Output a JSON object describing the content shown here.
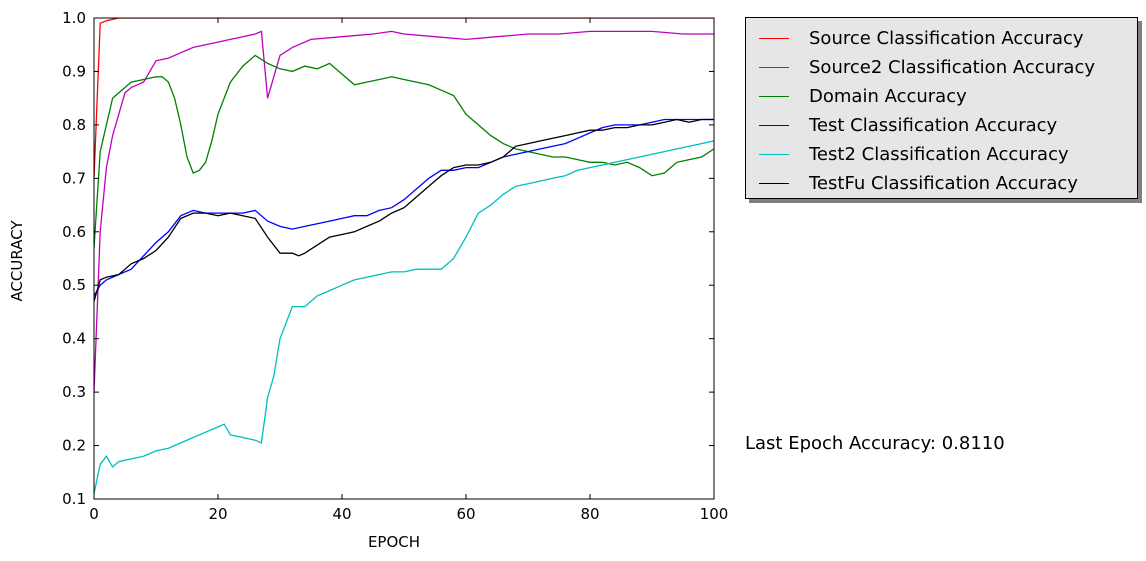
{
  "chart_data": {
    "type": "line",
    "xlabel": "EPOCH",
    "ylabel": "ACCURACY",
    "xlim": [
      0,
      100
    ],
    "ylim": [
      0.1,
      1.0
    ],
    "xticks": [
      0,
      20,
      40,
      60,
      80,
      100
    ],
    "yticks": [
      0.1,
      0.2,
      0.3,
      0.4,
      0.5,
      0.6,
      0.7,
      0.8,
      0.9,
      1.0
    ],
    "xtick_labels": [
      "0",
      "20",
      "40",
      "60",
      "80",
      "100"
    ],
    "ytick_labels": [
      "0.1",
      "0.2",
      "0.3",
      "0.4",
      "0.5",
      "0.6",
      "0.7",
      "0.8",
      "0.9",
      "1.0"
    ],
    "series": [
      {
        "name": "Source Classification Accuracy",
        "color": "#ff0000",
        "x": [
          0,
          1,
          2,
          4,
          10,
          30,
          60,
          100
        ],
        "y": [
          0.7,
          0.99,
          0.995,
          1.0,
          1.0,
          1.0,
          1.0,
          1.0
        ]
      },
      {
        "name": "Source2 Classification Accuracy",
        "color": "#bf00bf",
        "x": [
          0,
          1,
          2,
          3,
          4,
          5,
          6,
          7,
          8,
          9,
          10,
          12,
          14,
          16,
          18,
          20,
          22,
          24,
          26,
          27,
          28,
          30,
          32,
          35,
          40,
          45,
          48,
          50,
          55,
          60,
          65,
          70,
          75,
          80,
          85,
          90,
          95,
          100
        ],
        "y": [
          0.3,
          0.6,
          0.72,
          0.78,
          0.82,
          0.86,
          0.87,
          0.875,
          0.88,
          0.9,
          0.92,
          0.925,
          0.935,
          0.945,
          0.95,
          0.955,
          0.96,
          0.965,
          0.97,
          0.975,
          0.85,
          0.93,
          0.945,
          0.96,
          0.965,
          0.97,
          0.975,
          0.97,
          0.965,
          0.96,
          0.965,
          0.97,
          0.97,
          0.975,
          0.975,
          0.975,
          0.97,
          0.97
        ]
      },
      {
        "name": "Domain Accuracy",
        "color": "#008000",
        "x": [
          0,
          1,
          2,
          3,
          4,
          5,
          6,
          8,
          10,
          11,
          12,
          13,
          14,
          15,
          16,
          17,
          18,
          19,
          20,
          22,
          24,
          26,
          28,
          30,
          32,
          34,
          36,
          38,
          40,
          42,
          44,
          46,
          48,
          50,
          52,
          54,
          56,
          58,
          60,
          62,
          64,
          66,
          68,
          70,
          72,
          74,
          76,
          78,
          80,
          82,
          84,
          86,
          88,
          90,
          92,
          94,
          96,
          98,
          100
        ],
        "y": [
          0.57,
          0.75,
          0.8,
          0.85,
          0.86,
          0.87,
          0.88,
          0.885,
          0.89,
          0.89,
          0.88,
          0.85,
          0.8,
          0.74,
          0.71,
          0.715,
          0.73,
          0.77,
          0.82,
          0.88,
          0.91,
          0.93,
          0.915,
          0.905,
          0.9,
          0.91,
          0.905,
          0.915,
          0.895,
          0.875,
          0.88,
          0.885,
          0.89,
          0.885,
          0.88,
          0.875,
          0.865,
          0.855,
          0.82,
          0.8,
          0.78,
          0.765,
          0.755,
          0.75,
          0.745,
          0.74,
          0.74,
          0.735,
          0.73,
          0.73,
          0.725,
          0.73,
          0.72,
          0.705,
          0.71,
          0.73,
          0.735,
          0.74,
          0.755
        ]
      },
      {
        "name": "Test Classification Accuracy",
        "color": "#0000ff",
        "x": [
          0,
          1,
          2,
          4,
          6,
          8,
          10,
          12,
          14,
          16,
          18,
          20,
          22,
          24,
          26,
          28,
          30,
          32,
          34,
          36,
          38,
          40,
          42,
          44,
          46,
          48,
          50,
          52,
          54,
          56,
          58,
          60,
          62,
          64,
          66,
          68,
          70,
          72,
          74,
          76,
          78,
          80,
          82,
          84,
          86,
          88,
          90,
          92,
          94,
          96,
          98,
          100
        ],
        "y": [
          0.48,
          0.5,
          0.51,
          0.52,
          0.53,
          0.555,
          0.58,
          0.6,
          0.63,
          0.64,
          0.635,
          0.635,
          0.635,
          0.635,
          0.64,
          0.62,
          0.61,
          0.605,
          0.61,
          0.615,
          0.62,
          0.625,
          0.63,
          0.63,
          0.64,
          0.645,
          0.66,
          0.68,
          0.7,
          0.715,
          0.715,
          0.72,
          0.72,
          0.73,
          0.74,
          0.745,
          0.75,
          0.755,
          0.76,
          0.765,
          0.775,
          0.785,
          0.795,
          0.8,
          0.8,
          0.8,
          0.805,
          0.81,
          0.81,
          0.81,
          0.81,
          0.81
        ]
      },
      {
        "name": "Test2 Classification Accuracy",
        "color": "#00bfbf",
        "x": [
          0,
          1,
          2,
          3,
          4,
          6,
          8,
          10,
          12,
          14,
          16,
          18,
          20,
          21,
          22,
          24,
          26,
          27,
          28,
          29,
          30,
          32,
          34,
          36,
          38,
          40,
          42,
          44,
          46,
          48,
          50,
          52,
          54,
          56,
          58,
          60,
          62,
          64,
          66,
          68,
          70,
          72,
          74,
          76,
          78,
          80,
          82,
          84,
          86,
          88,
          90,
          92,
          94,
          96,
          98,
          100
        ],
        "y": [
          0.11,
          0.165,
          0.18,
          0.16,
          0.17,
          0.175,
          0.18,
          0.19,
          0.195,
          0.205,
          0.215,
          0.225,
          0.235,
          0.24,
          0.22,
          0.215,
          0.21,
          0.205,
          0.29,
          0.33,
          0.4,
          0.46,
          0.46,
          0.48,
          0.49,
          0.5,
          0.51,
          0.515,
          0.52,
          0.525,
          0.525,
          0.53,
          0.53,
          0.53,
          0.55,
          0.59,
          0.635,
          0.65,
          0.67,
          0.685,
          0.69,
          0.695,
          0.7,
          0.705,
          0.715,
          0.72,
          0.725,
          0.73,
          0.735,
          0.74,
          0.745,
          0.75,
          0.755,
          0.76,
          0.765,
          0.77
        ]
      },
      {
        "name": "TestFu Classification Accuracy",
        "color": "#000000",
        "x": [
          0,
          1,
          2,
          4,
          6,
          8,
          10,
          12,
          14,
          16,
          18,
          20,
          22,
          24,
          26,
          28,
          30,
          32,
          33,
          34,
          36,
          38,
          40,
          42,
          44,
          46,
          48,
          50,
          52,
          54,
          56,
          58,
          60,
          62,
          64,
          66,
          68,
          70,
          72,
          74,
          76,
          78,
          80,
          82,
          84,
          86,
          88,
          90,
          92,
          94,
          96,
          98,
          100
        ],
        "y": [
          0.47,
          0.51,
          0.515,
          0.52,
          0.54,
          0.55,
          0.565,
          0.59,
          0.625,
          0.635,
          0.635,
          0.63,
          0.635,
          0.63,
          0.625,
          0.59,
          0.56,
          0.56,
          0.555,
          0.56,
          0.575,
          0.59,
          0.595,
          0.6,
          0.61,
          0.62,
          0.635,
          0.645,
          0.665,
          0.685,
          0.705,
          0.72,
          0.725,
          0.725,
          0.73,
          0.74,
          0.76,
          0.765,
          0.77,
          0.775,
          0.78,
          0.785,
          0.79,
          0.79,
          0.795,
          0.795,
          0.8,
          0.8,
          0.805,
          0.81,
          0.805,
          0.81,
          0.81
        ]
      }
    ]
  },
  "legend": {
    "items": [
      {
        "label": "Source Classification Accuracy",
        "color": "#ff0000"
      },
      {
        "label": "Source2 Classification Accuracy",
        "color": "#bf00bf"
      },
      {
        "label": "Domain Accuracy",
        "color": "#008000"
      },
      {
        "label": "Test Classification Accuracy",
        "color": "#0000ff"
      },
      {
        "label": "Test2 Classification Accuracy",
        "color": "#00bfbf"
      },
      {
        "label": "TestFu Classification Accuracy",
        "color": "#000000"
      }
    ]
  },
  "annotation": {
    "text": "Last Epoch Accuracy: 0.8110"
  }
}
